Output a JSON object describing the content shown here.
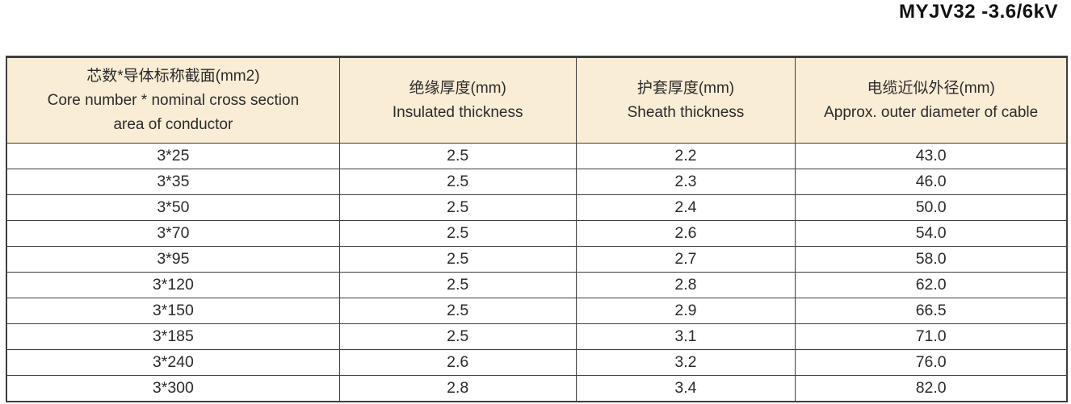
{
  "page_title": "MYJV32 -3.6/6kV",
  "colors": {
    "header_bg": "#FAEDD6",
    "border": "#3e3e3e",
    "text": "#2b2b2b"
  },
  "table": {
    "columns": [
      {
        "lines": [
          "芯数*导体标称截面(mm2)",
          "Core number * nominal cross section",
          "area of conductor"
        ]
      },
      {
        "lines": [
          "绝缘厚度(mm)",
          "Insulated thickness"
        ]
      },
      {
        "lines": [
          "护套厚度(mm)",
          "Sheath thickness"
        ]
      },
      {
        "lines": [
          "电缆近似外径(mm)",
          "Approx. outer diameter of cable"
        ]
      }
    ],
    "rows": [
      [
        "3*25",
        "2.5",
        "2.2",
        "43.0"
      ],
      [
        "3*35",
        "2.5",
        "2.3",
        "46.0"
      ],
      [
        "3*50",
        "2.5",
        "2.4",
        "50.0"
      ],
      [
        "3*70",
        "2.5",
        "2.6",
        "54.0"
      ],
      [
        "3*95",
        "2.5",
        "2.7",
        "58.0"
      ],
      [
        "3*120",
        "2.5",
        "2.8",
        "62.0"
      ],
      [
        "3*150",
        "2.5",
        "2.9",
        "66.5"
      ],
      [
        "3*185",
        "2.5",
        "3.1",
        "71.0"
      ],
      [
        "3*240",
        "2.6",
        "3.2",
        "76.0"
      ],
      [
        "3*300",
        "2.8",
        "3.4",
        "82.0"
      ]
    ]
  },
  "chart_data": {
    "type": "table",
    "title": "MYJV32 -3.6/6kV",
    "categories": [
      "3*25",
      "3*35",
      "3*50",
      "3*70",
      "3*95",
      "3*120",
      "3*150",
      "3*185",
      "3*240",
      "3*300"
    ],
    "series": [
      {
        "name": "Insulated thickness (mm)",
        "values": [
          2.5,
          2.5,
          2.5,
          2.5,
          2.5,
          2.5,
          2.5,
          2.5,
          2.6,
          2.8
        ]
      },
      {
        "name": "Sheath thickness (mm)",
        "values": [
          2.2,
          2.3,
          2.4,
          2.6,
          2.7,
          2.8,
          2.9,
          3.1,
          3.2,
          3.4
        ]
      },
      {
        "name": "Approx. outer diameter of cable (mm)",
        "values": [
          43.0,
          46.0,
          50.0,
          54.0,
          58.0,
          62.0,
          66.5,
          71.0,
          76.0,
          82.0
        ]
      }
    ]
  }
}
